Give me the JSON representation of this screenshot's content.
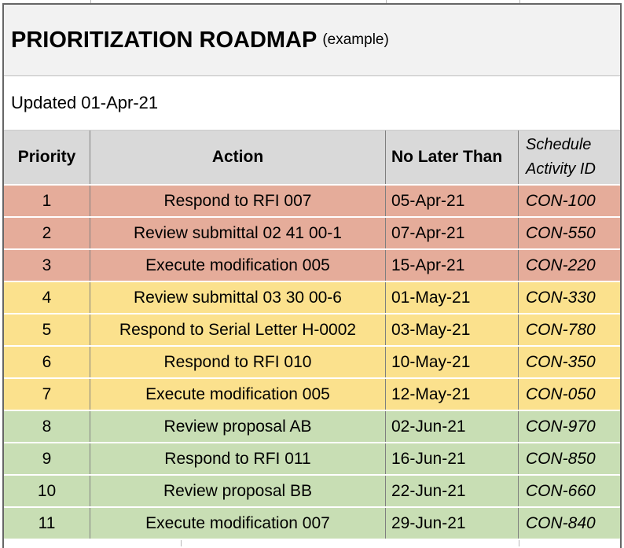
{
  "title": {
    "main": "PRIORITIZATION ROADMAP",
    "suffix": "(example)"
  },
  "updated_label": "Updated 01-Apr-21",
  "table": {
    "columns": {
      "priority": "Priority",
      "action": "Action",
      "no_later_than": "No Later Than",
      "schedule_activity_id_line1": "Schedule",
      "schedule_activity_id_line2": "Activity ID"
    },
    "rows": [
      {
        "priority": "1",
        "action": "Respond to RFI 007",
        "no_later_than": "05-Apr-21",
        "activity_id": "CON-100",
        "group": "red"
      },
      {
        "priority": "2",
        "action": "Review submittal 02 41 00-1",
        "no_later_than": "07-Apr-21",
        "activity_id": "CON-550",
        "group": "red"
      },
      {
        "priority": "3",
        "action": "Execute modification 005",
        "no_later_than": "15-Apr-21",
        "activity_id": "CON-220",
        "group": "red"
      },
      {
        "priority": "4",
        "action": "Review submittal 03 30 00-6",
        "no_later_than": "01-May-21",
        "activity_id": "CON-330",
        "group": "yellow"
      },
      {
        "priority": "5",
        "action": "Respond to Serial Letter H-0002",
        "no_later_than": "03-May-21",
        "activity_id": "CON-780",
        "group": "yellow"
      },
      {
        "priority": "6",
        "action": "Respond to RFI 010",
        "no_later_than": "10-May-21",
        "activity_id": "CON-350",
        "group": "yellow"
      },
      {
        "priority": "7",
        "action": "Execute modification 005",
        "no_later_than": "12-May-21",
        "activity_id": "CON-050",
        "group": "yellow"
      },
      {
        "priority": "8",
        "action": "Review proposal AB",
        "no_later_than": "02-Jun-21",
        "activity_id": "CON-970",
        "group": "green"
      },
      {
        "priority": "9",
        "action": "Respond to RFI 011",
        "no_later_than": "16-Jun-21",
        "activity_id": "CON-850",
        "group": "green"
      },
      {
        "priority": "10",
        "action": "Review proposal BB",
        "no_later_than": "22-Jun-21",
        "activity_id": "CON-660",
        "group": "green"
      },
      {
        "priority": "11",
        "action": "Execute modification 007",
        "no_later_than": "29-Jun-21",
        "activity_id": "CON-840",
        "group": "green"
      }
    ]
  },
  "colors": {
    "priority_high": "#e5ac9a",
    "priority_medium": "#fbe18d",
    "priority_low": "#c8deb4",
    "header_bg": "#d9d9d9",
    "title_bg": "#f2f2f2",
    "grid_line": "#7f7f7f",
    "outer_border": "#666666"
  }
}
